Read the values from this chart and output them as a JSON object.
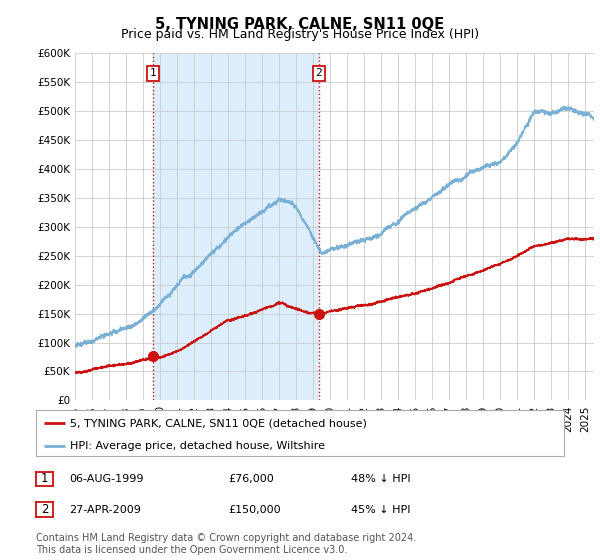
{
  "title": "5, TYNING PARK, CALNE, SN11 0QE",
  "subtitle": "Price paid vs. HM Land Registry's House Price Index (HPI)",
  "ylabel_ticks": [
    "£0",
    "£50K",
    "£100K",
    "£150K",
    "£200K",
    "£250K",
    "£300K",
    "£350K",
    "£400K",
    "£450K",
    "£500K",
    "£550K",
    "£600K"
  ],
  "ytick_values": [
    0,
    50000,
    100000,
    150000,
    200000,
    250000,
    300000,
    350000,
    400000,
    450000,
    500000,
    550000,
    600000
  ],
  "hpi_color": "#7ab0d4",
  "price_color": "#cc1111",
  "shade_color": "#ddeeff",
  "marker1_date": 1999.6,
  "marker1_price": 76000,
  "marker1_label": "06-AUG-1999",
  "marker1_value": "£76,000",
  "marker1_pct": "48% ↓ HPI",
  "marker2_date": 2009.32,
  "marker2_price": 150000,
  "marker2_label": "27-APR-2009",
  "marker2_value": "£150,000",
  "marker2_pct": "45% ↓ HPI",
  "legend_label1": "5, TYNING PARK, CALNE, SN11 0QE (detached house)",
  "legend_label2": "HPI: Average price, detached house, Wiltshire",
  "footer": "Contains HM Land Registry data © Crown copyright and database right 2024.\nThis data is licensed under the Open Government Licence v3.0.",
  "xmin": 1995.0,
  "xmax": 2025.5,
  "ymin": 0,
  "ymax": 600000,
  "grid_color": "#cccccc",
  "background_color": "#ffffff",
  "vline_color": "#cc1111",
  "title_fontsize": 10.5,
  "subtitle_fontsize": 9,
  "tick_fontsize": 7.5,
  "legend_fontsize": 8,
  "footer_fontsize": 7
}
